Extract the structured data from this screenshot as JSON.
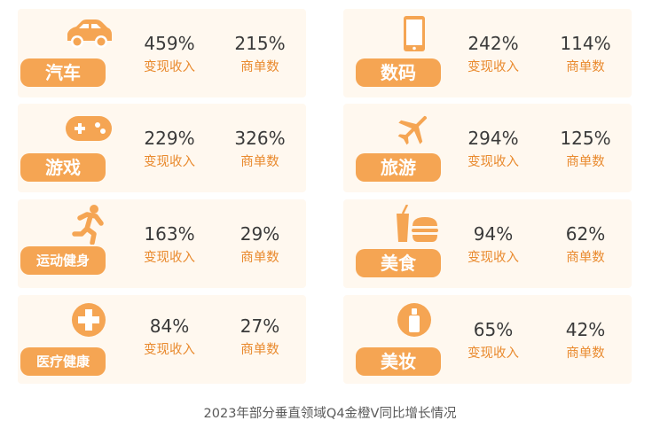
{
  "caption": "2023年部分垂直领域Q4金橙V同比增长情况",
  "chart_data": {
    "type": "table",
    "title": "2023年部分垂直领域Q4金橙V同比增长情况",
    "columns": [
      "变现收入",
      "商单数"
    ],
    "rows": [
      {
        "category": "汽车",
        "icon": "car-icon",
        "revenue": "459%",
        "orders": "215%",
        "revenue_label": "变现收入",
        "orders_label": "商单数"
      },
      {
        "category": "数码",
        "icon": "smartphone-icon",
        "revenue": "242%",
        "orders": "114%",
        "revenue_label": "变现收入",
        "orders_label": "商单数"
      },
      {
        "category": "游戏",
        "icon": "gamepad-icon",
        "revenue": "229%",
        "orders": "326%",
        "revenue_label": "变现收入",
        "orders_label": "商单数"
      },
      {
        "category": "旅游",
        "icon": "airplane-icon",
        "revenue": "294%",
        "orders": "125%",
        "revenue_label": "变现收入",
        "orders_label": "商单数"
      },
      {
        "category": "运动健身",
        "icon": "running-person-icon",
        "revenue": "163%",
        "orders": "29%",
        "revenue_label": "变现收入",
        "orders_label": "商单数"
      },
      {
        "category": "美食",
        "icon": "food-drink-icon",
        "revenue": "94%",
        "orders": "62%",
        "revenue_label": "变现收入",
        "orders_label": "商单数"
      },
      {
        "category": "医疗健康",
        "icon": "medical-cross-icon",
        "revenue": "84%",
        "orders": "27%",
        "revenue_label": "变现收入",
        "orders_label": "商单数"
      },
      {
        "category": "美妆",
        "icon": "cosmetic-bottle-icon",
        "revenue": "65%",
        "orders": "42%",
        "revenue_label": "变现收入",
        "orders_label": "商单数"
      }
    ]
  },
  "colors": {
    "accent": "#f5a553",
    "label": "#e98a2e",
    "card_bg": "#fff8ef",
    "value_text": "#3a3a3a"
  }
}
